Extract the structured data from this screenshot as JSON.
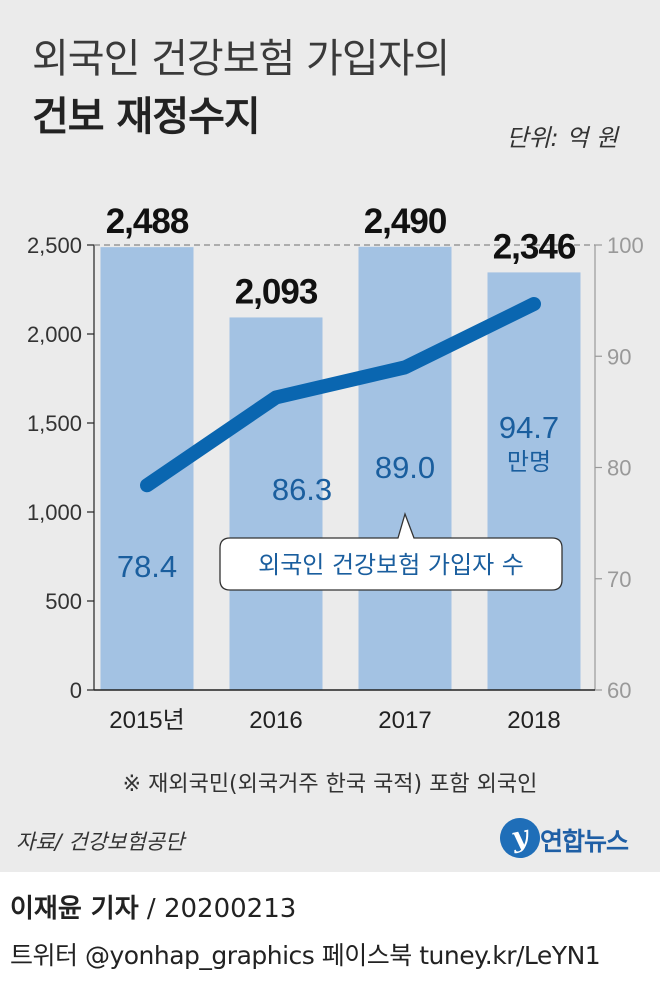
{
  "title_line1": "외국인 건강보험 가입자의",
  "title_line2": "건보 재정수지",
  "unit": "단위: 억 원",
  "note": "※ 재외국민(외국거주 한국 국적) 포함 외국인",
  "source": "자료/ 건강보험공단",
  "logo": {
    "mark": "y",
    "text": "연합뉴스"
  },
  "reporter": {
    "name": "이재윤 기자",
    "date": " / 20200213"
  },
  "social": "트위터 @yonhap_graphics  페이스북 tuney.kr/LeYN1",
  "colors": {
    "bar": "#a3c2e3",
    "line": "#0a66b0",
    "value_text": "#1a5e9e",
    "panel": "#ebebeb"
  },
  "chart_data": {
    "type": "bar",
    "title": "외국인 건강보험 가입자의 건보 재정수지",
    "categories": [
      "2015년",
      "2016",
      "2017",
      "2018"
    ],
    "values": [
      2488,
      2093,
      2490,
      2346
    ],
    "value_labels": [
      "2,488",
      "2,093",
      "2,490",
      "2,346"
    ],
    "ylabel": "억 원",
    "ylim": [
      0,
      2500
    ],
    "yticks": [
      0,
      500,
      1000,
      1500,
      2000,
      2500
    ],
    "ytick_labels": [
      "0",
      "500",
      "1,000",
      "1,500",
      "2,000",
      "2,500"
    ],
    "secondary": {
      "type": "line",
      "name": "외국인 건강보험 가입자 수",
      "unit": "만명",
      "values": [
        78.4,
        86.3,
        89.0,
        94.7
      ],
      "value_labels": [
        "78.4",
        "86.3",
        "89.0",
        "94.7"
      ],
      "ylim": [
        60,
        100
      ],
      "yticks": [
        60,
        70,
        80,
        90,
        100
      ],
      "ytick_labels": [
        "60",
        "70",
        "80",
        "90",
        "100"
      ]
    }
  }
}
